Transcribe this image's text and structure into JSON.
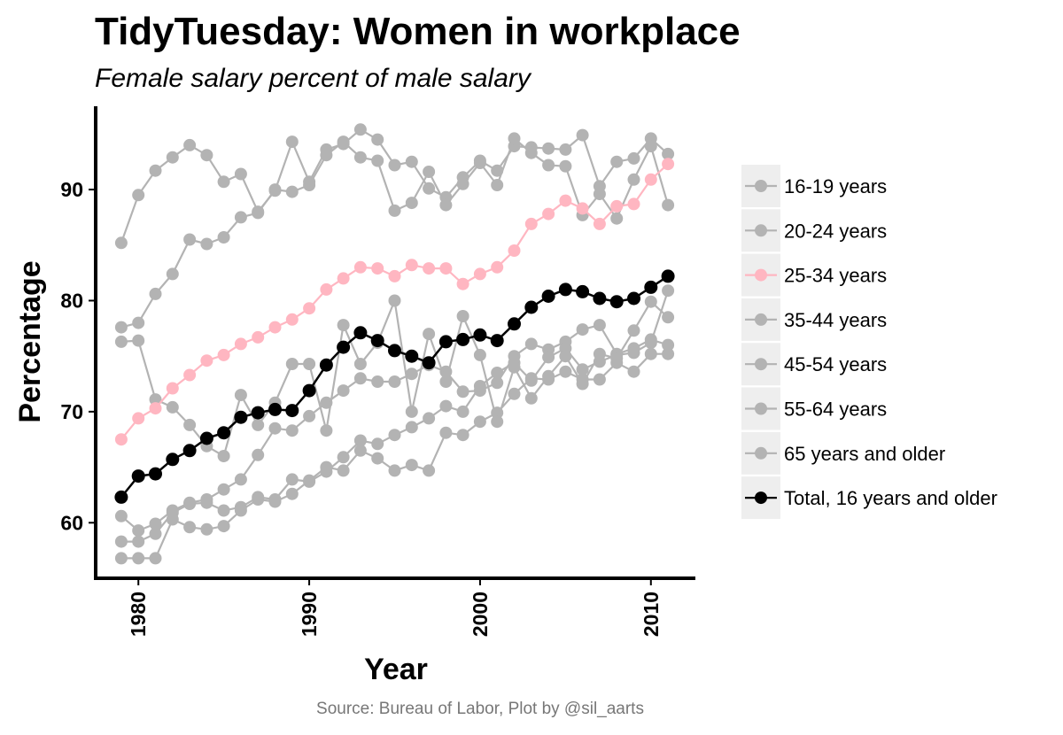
{
  "chart_data": {
    "type": "line",
    "title": "TidyTuesday: Women in workplace",
    "subtitle": "Female salary percent of male salary",
    "xlabel": "Year",
    "ylabel": "Percentage",
    "caption": "Source: Bureau of Labor,  Plot by @sil_aarts",
    "xlim": [
      1977.5,
      2012.5
    ],
    "ylim": [
      55.0,
      97.5
    ],
    "xticks": [
      1980,
      1990,
      2000,
      2010
    ],
    "yticks": [
      60,
      70,
      80,
      90
    ],
    "grid": false,
    "legend_position": "right",
    "colors": {
      "grey": "#b3b3b3",
      "pink": "#ffb6c1",
      "black": "#000000",
      "legend_key_bg": "#eeeeee"
    },
    "x": [
      1979,
      1980,
      1981,
      1982,
      1983,
      1984,
      1985,
      1986,
      1987,
      1988,
      1989,
      1990,
      1991,
      1992,
      1993,
      1994,
      1995,
      1996,
      1997,
      1998,
      1999,
      2000,
      2001,
      2002,
      2003,
      2004,
      2005,
      2006,
      2007,
      2008,
      2009,
      2010,
      2011
    ],
    "series": [
      {
        "name": "16-19 years",
        "color": "#b3b3b3",
        "values": [
          85.2,
          89.5,
          91.7,
          92.9,
          94.0,
          93.1,
          90.7,
          91.4,
          88.0,
          89.9,
          94.3,
          90.7,
          93.6,
          94.1,
          95.4,
          94.5,
          92.2,
          92.5,
          90.1,
          89.3,
          91.1,
          92.6,
          91.7,
          93.9,
          93.8,
          93.7,
          93.6,
          94.9,
          90.3,
          92.5,
          92.8,
          94.6,
          93.2
        ]
      },
      {
        "name": "20-24 years",
        "color": "#b3b3b3",
        "values": [
          77.6,
          78.0,
          80.6,
          82.4,
          85.5,
          85.1,
          85.7,
          87.5,
          87.9,
          90.0,
          89.8,
          90.4,
          93.1,
          94.3,
          92.9,
          92.6,
          88.1,
          88.8,
          91.6,
          88.6,
          90.5,
          92.4,
          90.4,
          94.6,
          93.3,
          92.2,
          92.1,
          87.7,
          89.6,
          87.4,
          90.9,
          93.9,
          88.6
        ]
      },
      {
        "name": "25-34 years",
        "color": "#ffb6c1",
        "values": [
          67.5,
          69.4,
          70.3,
          72.1,
          73.3,
          74.6,
          75.1,
          76.1,
          76.7,
          77.6,
          78.3,
          79.3,
          81.0,
          82.0,
          83.0,
          82.9,
          82.2,
          83.2,
          82.9,
          82.9,
          81.5,
          82.4,
          83.0,
          84.5,
          86.9,
          87.8,
          89.0,
          88.3,
          86.9,
          88.5,
          88.7,
          90.9,
          92.3
        ]
      },
      {
        "name": "35-44 years",
        "color": "#b3b3b3",
        "values": [
          60.6,
          59.3,
          59.9,
          61.1,
          61.8,
          62.1,
          63.0,
          63.9,
          66.1,
          68.5,
          68.3,
          69.6,
          70.8,
          71.9,
          73.0,
          72.7,
          72.7,
          73.4,
          74.2,
          73.6,
          71.8,
          71.9,
          72.6,
          75.0,
          76.1,
          75.6,
          76.3,
          77.4,
          77.8,
          75.2,
          75.7,
          76.5,
          76.0
        ]
      },
      {
        "name": "45-54 years",
        "color": "#b3b3b3",
        "values": [
          58.3,
          58.3,
          59.0,
          60.9,
          61.7,
          61.8,
          61.1,
          61.4,
          62.3,
          62.1,
          63.9,
          63.7,
          64.6,
          65.9,
          67.4,
          67.1,
          67.9,
          68.6,
          69.4,
          70.5,
          70.0,
          72.3,
          73.5,
          74.4,
          72.8,
          74.9,
          75.7,
          73.8,
          74.5,
          75.1,
          75.3,
          76.2,
          80.9
        ]
      },
      {
        "name": "55-64 years",
        "color": "#b3b3b3",
        "values": [
          56.8,
          56.8,
          56.8,
          60.3,
          59.6,
          59.4,
          59.7,
          61.1,
          62.1,
          61.9,
          62.6,
          63.8,
          65.0,
          64.7,
          66.5,
          65.8,
          64.7,
          65.2,
          64.7,
          68.1,
          67.9,
          69.1,
          69.9,
          71.6,
          73.0,
          72.9,
          73.6,
          72.9,
          72.9,
          74.4,
          73.6,
          75.2,
          75.2
        ]
      },
      {
        "name": "65 years and older",
        "color": "#b3b3b3",
        "values": [
          76.3,
          76.4,
          71.1,
          70.4,
          68.8,
          66.9,
          66.0,
          71.5,
          68.8,
          70.8,
          74.3,
          74.3,
          68.3,
          77.8,
          74.3,
          76.2,
          80.0,
          70.0,
          77.0,
          72.7,
          78.6,
          75.1,
          69.1,
          74.0,
          71.2,
          73.2,
          75.0,
          72.5,
          75.2,
          74.8,
          77.3,
          79.9,
          78.5
        ]
      },
      {
        "name": "Total, 16 years and older",
        "color": "#000000",
        "values": [
          62.3,
          64.2,
          64.4,
          65.7,
          66.5,
          67.6,
          68.1,
          69.5,
          69.9,
          70.2,
          70.1,
          71.9,
          74.2,
          75.8,
          77.1,
          76.4,
          75.5,
          75.0,
          74.4,
          76.3,
          76.5,
          76.9,
          76.4,
          77.9,
          79.4,
          80.4,
          81.0,
          80.8,
          80.2,
          79.9,
          80.2,
          81.2,
          82.2
        ]
      }
    ]
  }
}
